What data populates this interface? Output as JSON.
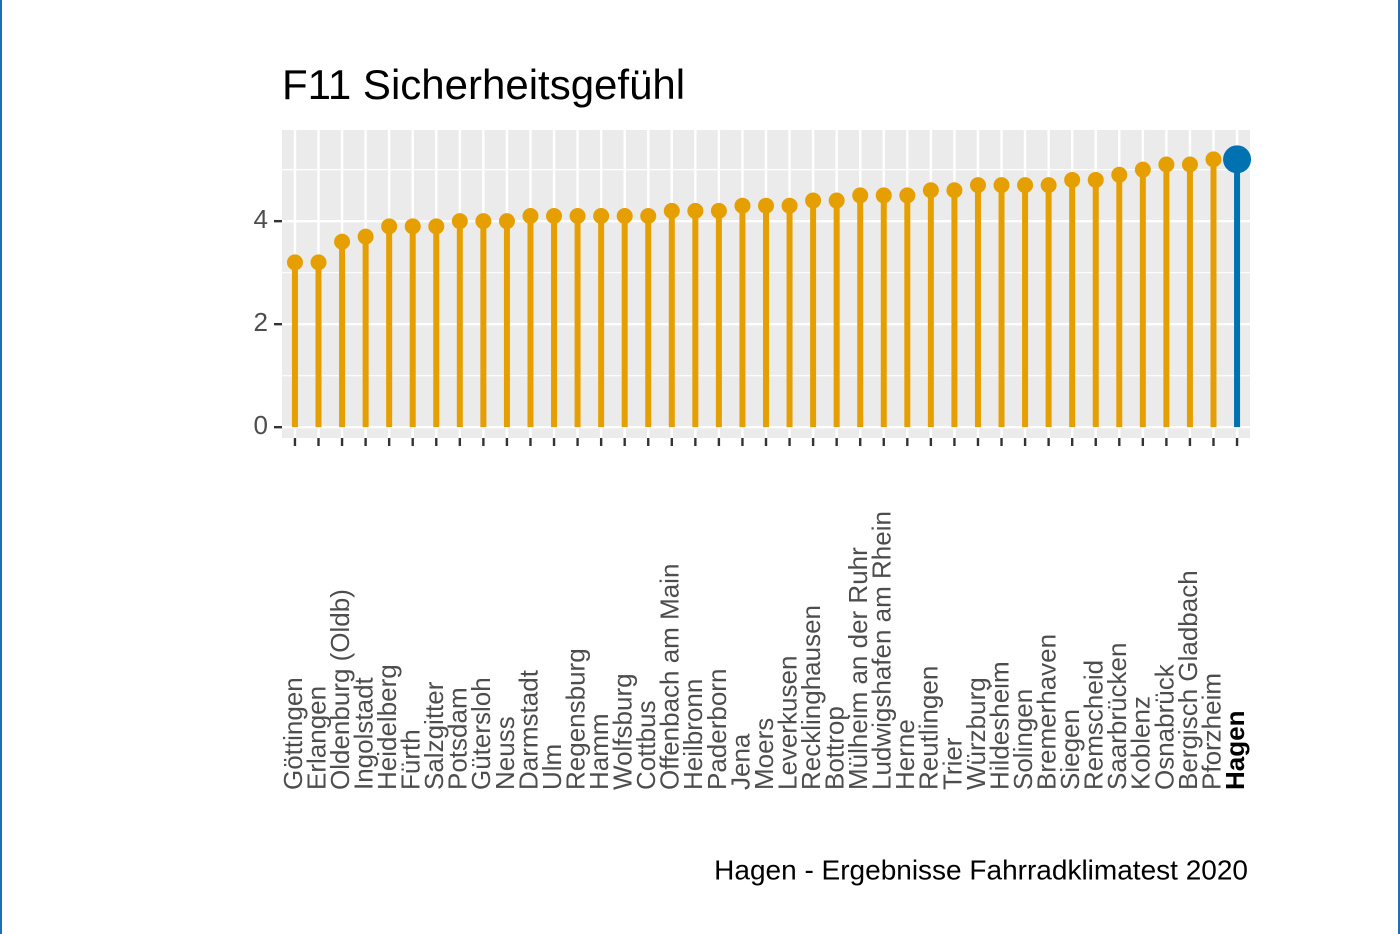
{
  "chart_data": {
    "type": "lollipop",
    "title": "F11 Sicherheitsgefühl",
    "caption": "Hagen - Ergebnisse Fahrradklimatest 2020",
    "categories": [
      "Göttingen",
      "Erlangen",
      "Oldenburg (Oldb)",
      "Ingolstadt",
      "Heidelberg",
      "Fürth",
      "Salzgitter",
      "Potsdam",
      "Gütersloh",
      "Neuss",
      "Darmstadt",
      "Ulm",
      "Regensburg",
      "Hamm",
      "Wolfsburg",
      "Cottbus",
      "Offenbach am Main",
      "Heilbronn",
      "Paderborn",
      "Jena",
      "Moers",
      "Leverkusen",
      "Recklinghausen",
      "Bottrop",
      "Mülheim an der Ruhr",
      "Ludwigshafen am Rhein",
      "Herne",
      "Reutlingen",
      "Trier",
      "Würzburg",
      "Hildesheim",
      "Solingen",
      "Bremerhaven",
      "Siegen",
      "Remscheid",
      "Saarbrücken",
      "Koblenz",
      "Osnabrück",
      "Bergisch Gladbach",
      "Pforzheim",
      "Hagen"
    ],
    "values": [
      3.2,
      3.2,
      3.6,
      3.7,
      3.9,
      3.9,
      3.9,
      4.0,
      4.0,
      4.0,
      4.1,
      4.1,
      4.1,
      4.1,
      4.1,
      4.1,
      4.2,
      4.2,
      4.2,
      4.3,
      4.3,
      4.3,
      4.4,
      4.4,
      4.5,
      4.5,
      4.5,
      4.6,
      4.6,
      4.7,
      4.7,
      4.7,
      4.7,
      4.8,
      4.8,
      4.9,
      5.0,
      5.1,
      5.1,
      5.2,
      5.2
    ],
    "colors": [
      "#E69F00",
      "#E69F00",
      "#E69F00",
      "#E69F00",
      "#E69F00",
      "#E69F00",
      "#E69F00",
      "#E69F00",
      "#E69F00",
      "#E69F00",
      "#E69F00",
      "#E69F00",
      "#E69F00",
      "#E69F00",
      "#E69F00",
      "#E69F00",
      "#E69F00",
      "#E69F00",
      "#E69F00",
      "#E69F00",
      "#E69F00",
      "#E69F00",
      "#E69F00",
      "#E69F00",
      "#E69F00",
      "#E69F00",
      "#E69F00",
      "#E69F00",
      "#E69F00",
      "#E69F00",
      "#E69F00",
      "#E69F00",
      "#E69F00",
      "#E69F00",
      "#E69F00",
      "#E69F00",
      "#E69F00",
      "#E69F00",
      "#E69F00",
      "#E69F00",
      "#0072B2"
    ],
    "ylim": [
      -0.21,
      5.77
    ],
    "yticks": [
      0,
      2,
      4
    ],
    "grid": true
  }
}
